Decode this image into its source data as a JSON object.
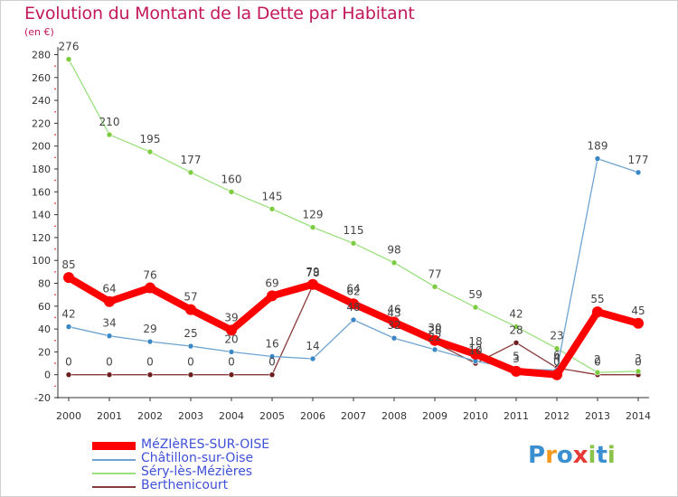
{
  "header": {
    "title": "Evolution du Montant de la Dette par Habitant",
    "unit": "(en €)"
  },
  "logo": {
    "text": "Proxiti",
    "letters": [
      {
        "ch": "P",
        "color": "#3a8fd1"
      },
      {
        "ch": "r",
        "color": "#f39a1e"
      },
      {
        "ch": "o",
        "color": "#3a8fd1"
      },
      {
        "ch": "x",
        "color": "#e53935"
      },
      {
        "ch": "i",
        "color": "#8bc34a"
      },
      {
        "ch": "t",
        "color": "#3a8fd1"
      },
      {
        "ch": "i",
        "color": "#8bc34a"
      }
    ]
  },
  "chart_data": {
    "type": "line",
    "title": "Evolution du Montant de la Dette par Habitant",
    "ylabel": "(en €)",
    "xlabel": "",
    "ylim": [
      -20,
      280
    ],
    "yticks": [
      -20,
      0,
      20,
      40,
      60,
      80,
      100,
      120,
      140,
      160,
      180,
      200,
      220,
      240,
      260,
      280
    ],
    "grid": false,
    "legend_position": "bottom-left",
    "categories": [
      "2000",
      "2001",
      "2002",
      "2003",
      "2004",
      "2005",
      "2006",
      "2007",
      "2008",
      "2009",
      "2010",
      "2011",
      "2012",
      "2013",
      "2014"
    ],
    "series": [
      {
        "name": "MéZIèRES-SUR-OISE",
        "color": "#ff0000",
        "point_color": "#ff0000",
        "style": "thick",
        "values": [
          85,
          64,
          76,
          57,
          39,
          69,
          79,
          62,
          46,
          30,
          18,
          3,
          0,
          55,
          45
        ]
      },
      {
        "name": "Châtillon-sur-Oise",
        "color": "#6fa3d0",
        "point_color": "#3a87c8",
        "style": "thin",
        "values": [
          42,
          34,
          29,
          25,
          20,
          16,
          14,
          48,
          32,
          22,
          12,
          5,
          4,
          189,
          177
        ]
      },
      {
        "name": "Séry-lès-Mézières",
        "color": "#9be07f",
        "point_color": "#7ccc3f",
        "style": "thin",
        "values": [
          276,
          210,
          195,
          177,
          160,
          145,
          129,
          115,
          98,
          77,
          59,
          42,
          23,
          2,
          3
        ]
      },
      {
        "name": "Berthenicourt",
        "color": "#8a3a3a",
        "point_color": "#6d1d1d",
        "style": "thin",
        "values": [
          0,
          0,
          0,
          0,
          0,
          0,
          78,
          64,
          43,
          28,
          10,
          28,
          6,
          0,
          0
        ]
      }
    ]
  }
}
